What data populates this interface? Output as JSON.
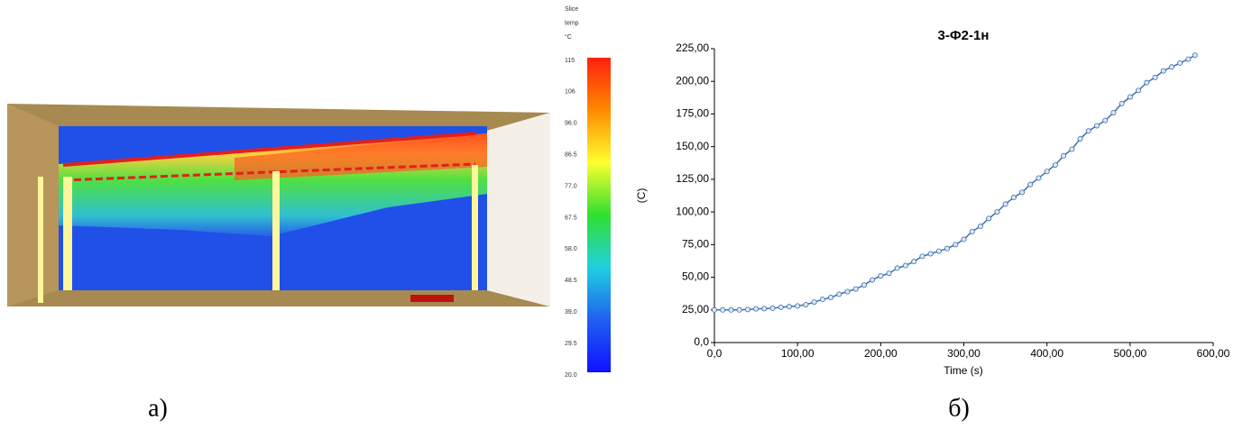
{
  "chart_data": [
    {
      "type": "colorbar",
      "caption": "а)",
      "title_lines": [
        "Slice",
        "temp",
        "°C"
      ],
      "clim": [
        20,
        115
      ],
      "ticks": [
        115,
        {
          "value": 105.5,
          "label": "106"
        },
        {
          "value": 96,
          "label": "96.0"
        },
        86.5,
        {
          "value": 77,
          "label": "77.0"
        },
        67.5,
        {
          "value": 58,
          "label": "58.0"
        },
        48.5,
        {
          "value": 39,
          "label": "39.0"
        },
        29.5,
        {
          "value": 20,
          "label": "20.0"
        }
      ],
      "colors": [
        "#ff2010",
        "#ff8a00",
        "#ffff30",
        "#30e030",
        "#20d0e0",
        "#2060f0",
        "#1010ff"
      ]
    },
    {
      "type": "line",
      "caption": "б)",
      "title": "3-Ф2-1н",
      "xlabel": "Time (s)",
      "ylabel": "(C)",
      "xlim": [
        0,
        600
      ],
      "ylim": [
        0,
        225
      ],
      "xticks": [
        {
          "value": 0,
          "label": "0,0"
        },
        {
          "value": 100,
          "label": "100,00"
        },
        {
          "value": 200,
          "label": "200,00"
        },
        {
          "value": 300,
          "label": "300,00"
        },
        {
          "value": 400,
          "label": "400,00"
        },
        {
          "value": 500,
          "label": "500,00"
        },
        {
          "value": 600,
          "label": "600,00"
        }
      ],
      "yticks": [
        {
          "value": 0,
          "label": "0,0"
        },
        {
          "value": 25,
          "label": "25,00"
        },
        {
          "value": 50,
          "label": "50,00"
        },
        {
          "value": 75,
          "label": "75,00"
        },
        {
          "value": 100,
          "label": "100,00"
        },
        {
          "value": 125,
          "label": "125,00"
        },
        {
          "value": 150,
          "label": "150,00"
        },
        {
          "value": 175,
          "label": "175,00"
        },
        {
          "value": 200,
          "label": "200,00"
        },
        {
          "value": 225,
          "label": "225,00"
        }
      ],
      "x": [
        0,
        10,
        20,
        30,
        40,
        50,
        60,
        70,
        80,
        90,
        100,
        110,
        120,
        130,
        140,
        150,
        160,
        170,
        180,
        190,
        200,
        210,
        220,
        230,
        240,
        250,
        260,
        270,
        280,
        290,
        300,
        310,
        320,
        330,
        340,
        350,
        360,
        370,
        380,
        390,
        400,
        410,
        420,
        430,
        440,
        450,
        460,
        470,
        480,
        490,
        500,
        510,
        520,
        530,
        540,
        550,
        560,
        570,
        578
      ],
      "series": [
        {
          "name": "3-Ф2-1н",
          "color": "#3d6fae",
          "values": [
            25,
            25,
            25,
            25,
            25.3,
            25.8,
            26,
            26.3,
            27,
            27.5,
            28,
            29,
            31,
            33,
            34.5,
            37,
            39,
            41,
            44,
            48,
            51,
            53,
            57,
            59,
            62,
            66,
            68,
            70,
            72,
            75,
            79,
            85,
            89,
            95,
            100,
            106,
            111,
            115,
            121,
            126,
            131,
            136,
            143,
            148,
            156,
            162,
            166,
            170,
            176,
            183,
            188,
            193,
            199,
            203,
            208,
            211,
            214,
            217,
            220
          ]
        }
      ]
    }
  ]
}
